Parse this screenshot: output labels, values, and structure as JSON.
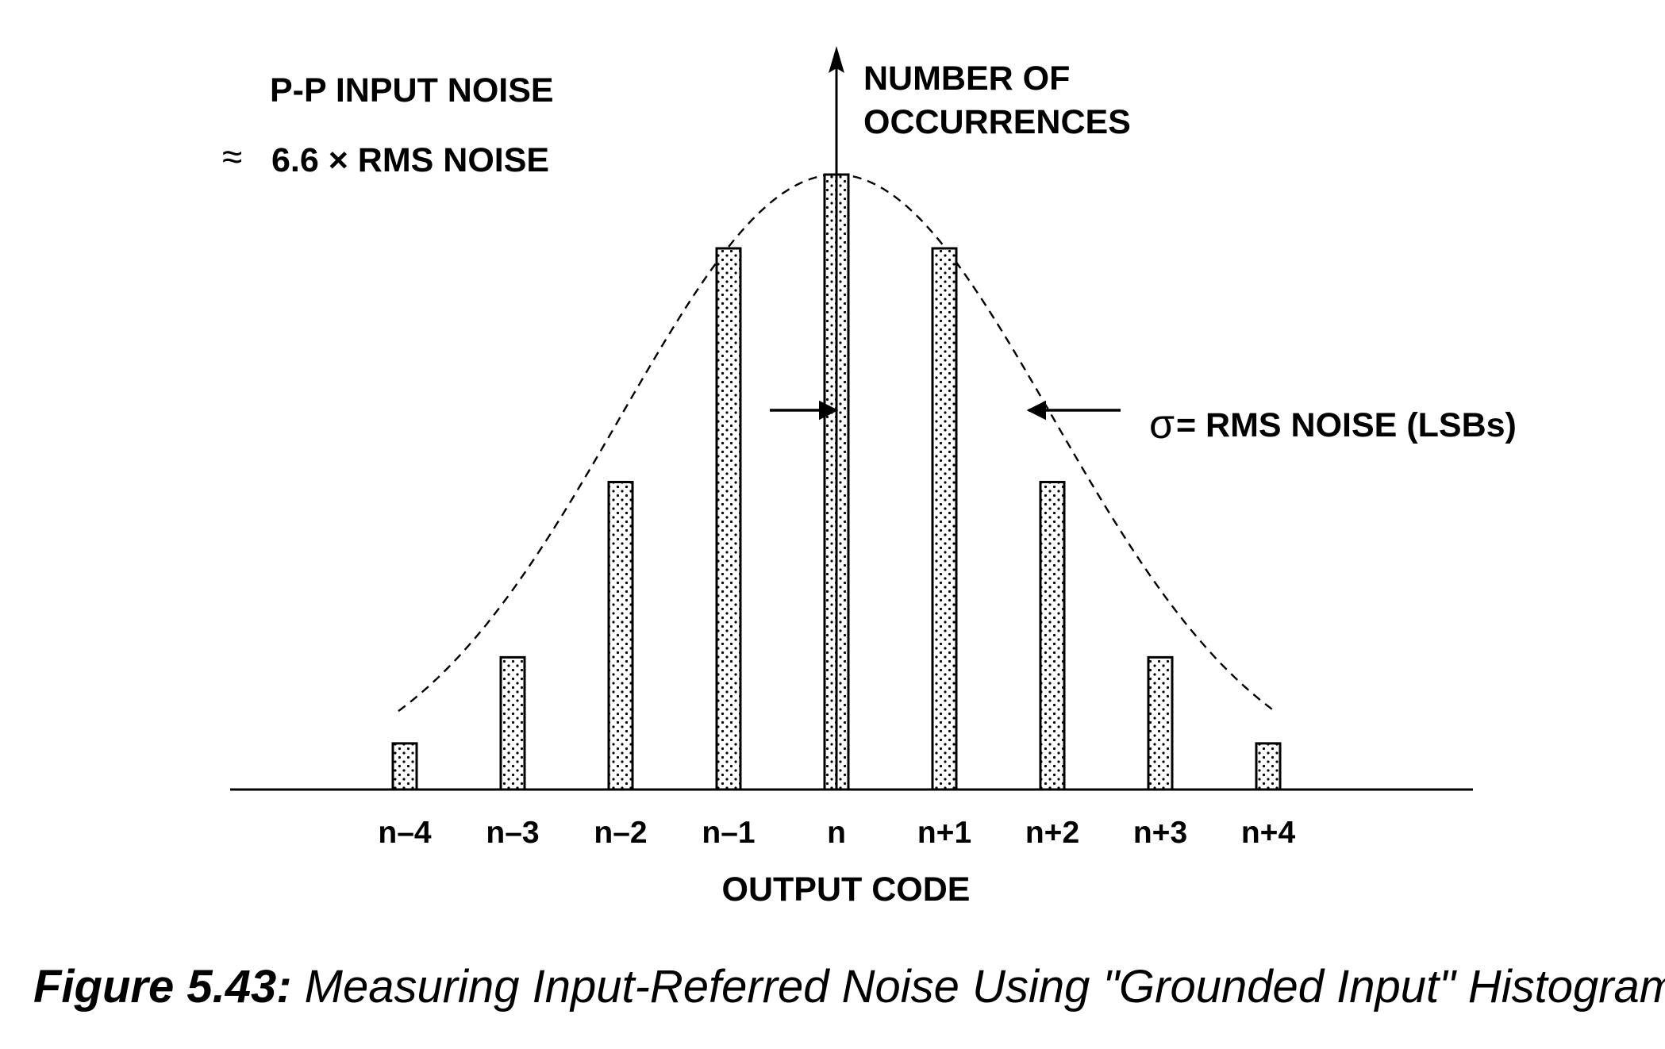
{
  "chart_data": {
    "type": "bar",
    "categories": [
      "n–4",
      "n–3",
      "n–2",
      "n–1",
      "n",
      "n+1",
      "n+2",
      "n+3",
      "n+4"
    ],
    "values": [
      0.075,
      0.215,
      0.5,
      0.88,
      1.0,
      0.88,
      0.5,
      0.215,
      0.075
    ],
    "curve": "gaussian",
    "xlabel": "OUTPUT CODE",
    "ylabel_line1": "NUMBER OF",
    "ylabel_line2": "OCCURRENCES",
    "pp_line1": "P-P INPUT NOISE",
    "pp_symbol": "≈",
    "pp_line2": "6.6 × RMS NOISE",
    "sigma_symbol": "σ",
    "sigma_text": "= RMS NOISE (LSBs)"
  },
  "caption": {
    "label": "Figure 5.43:",
    "text": " Measuring Input-Referred Noise Using \"Grounded Input\" Histogram"
  }
}
